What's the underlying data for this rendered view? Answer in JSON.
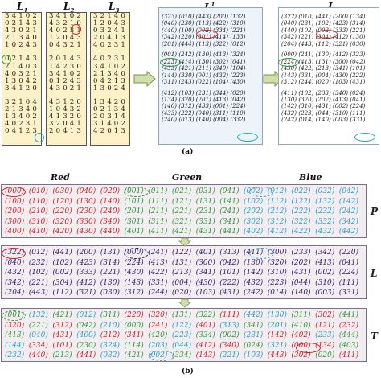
{
  "part_a": {
    "caption": "(a)",
    "latin_squares": [
      {
        "title": "L",
        "sub": "1",
        "rows": [
          "3 4 1 0 2",
          "0 2 1 4 3",
          "4 3 0 2 1",
          "2 1 3 4 0",
          "1 0 2 4 3",
          "",
          "",
          "0 2 1 4 3",
          "2 1 4 0 3",
          "4 0 3 2 1",
          "1 3 0 4 2",
          "3 4 1 2 0",
          "",
          "",
          "3 2 1 0 4",
          "2 1 3 4 0",
          "1 3 4 0 2",
          "4 0 2 3 1",
          "0 4 1 2 3"
        ]
      },
      {
        "title": "L",
        "sub": "2",
        "rows": [
          "3 4 1 0 2",
          "4 3 2 1 0",
          "4 0 2 3 1",
          "1 2 0 4 3",
          "0 4 3 2 1",
          "",
          "",
          "2 0 1 4 3",
          "1 4 2 3 0",
          "3 4 1 0 2",
          "0 1 2 4 3",
          "4 3 0 2 1",
          "",
          "",
          "4 3 1 2 0",
          "1 0 4 3 2",
          "4 1 3 2 0",
          "3 2 0 4 1",
          "2 0 4 1 3"
        ]
      },
      {
        "title": "L",
        "sub": "3",
        "rows": [
          "3 2 1 4 0",
          "1 2 0 4 3",
          "0 3 2 4 1",
          "2 0 4 1 3",
          "4 0 2 3 1",
          "",
          "",
          "4 0 2 3 1",
          "3 4 1 0 2",
          "2 1 3 4 0",
          "0 4 2 1 3",
          "1 3 0 2 4",
          "",
          "",
          "1 3 4 2 0",
          "0 2 1 3 4",
          "2 0 3 1 4",
          "3 1 4 0 2",
          "4 2 0 1 3"
        ]
      }
    ],
    "matrices": [
      {
        "title": "L",
        "sup": "1",
        "rows": [
          "(323) (010) (443) (200) (132)",
          "(040) (230) (113) (422) (310)",
          "(440) (100) (002) (334) (221)",
          "(342) (220) (301) (414) (133)",
          "(201) (444) (113) (322) (012)",
          "",
          "(001) (242) (130) (413) (324)",
          "(223) (414) (130) (302) (041)",
          "(433) (421) (211) (340) (104)",
          "(144) (330) (001) (432) (223)",
          "(311) (243) (022) (104) (430)",
          "",
          "(412) (103) (231) (344) (020)",
          "(134) (320) (201) (413) (042)",
          "(140) (312) (433) (001) (224)",
          "(433) (222) (040) (311) (110)",
          "(240) (013) (140) (004) (332)"
        ]
      },
      {
        "title": "L",
        "sup": "",
        "rows": [
          "(322) (010) (441) (200) (134)",
          "(040) (231) (102) (423) (314)",
          "(440) (102) (002) (333) (221)",
          "(342) (221) (304) (412) (130)",
          "(204) (443) (112) (321) (030)",
          "",
          "(000) (241) (130) (412) (323)",
          "(224) (413) (131) (300) (042)",
          "(430) (422) (213) (341) (101)",
          "(143) (331) (004) (430) (222)",
          "(312) (244) (020) (103) (431)",
          "",
          "(411) (102) (233) (340) (024)",
          "(130) (320) (202) (413) (041)",
          "(142) (310) (431) (002) (224)",
          "(432) (223) (044) (310) (111)",
          "(242) (014) (140) (003) (331)"
        ]
      }
    ]
  },
  "part_b": {
    "caption": "(b)",
    "column_headers": [
      "Red",
      "Green",
      "Blue"
    ],
    "colors": {
      "red": "#d61f26",
      "green": "#2f9a3a",
      "blue": "#2ba3c8",
      "dark": "#3a1e6c"
    },
    "panels": [
      {
        "label": "P",
        "rows": [
          [
            "(000)",
            "(010)",
            "(030)",
            "(040)",
            "(020)",
            "(001)",
            "(011)",
            "(021)",
            "(031)",
            "(041)",
            "(002)",
            "(012)",
            "(022)",
            "(032)",
            "(042)"
          ],
          [
            "(100)",
            "(110)",
            "(120)",
            "(130)",
            "(140)",
            "(101)",
            "(111)",
            "(121)",
            "(131)",
            "(141)",
            "(102)",
            "(112)",
            "(122)",
            "(132)",
            "(142)"
          ],
          [
            "(200)",
            "(210)",
            "(220)",
            "(230)",
            "(240)",
            "(201)",
            "(211)",
            "(221)",
            "(231)",
            "(241)",
            "(202)",
            "(212)",
            "(222)",
            "(232)",
            "(242)"
          ],
          [
            "(300)",
            "(310)",
            "(320)",
            "(330)",
            "(340)",
            "(301)",
            "(311)",
            "(321)",
            "(331)",
            "(341)",
            "(302)",
            "(312)",
            "(322)",
            "(332)",
            "(342)"
          ],
          [
            "(400)",
            "(410)",
            "(420)",
            "(430)",
            "(440)",
            "(401)",
            "(411)",
            "(421)",
            "(431)",
            "(441)",
            "(402)",
            "(412)",
            "(422)",
            "(432)",
            "(442)"
          ]
        ]
      },
      {
        "label": "L",
        "rows": [
          [
            "(322)",
            "(012)",
            "(441)",
            "(200)",
            "(131)",
            "(000)",
            "(241)",
            "(122)",
            "(401)",
            "(313)",
            "(411)",
            "(300)",
            "(233)",
            "(342)",
            "(220)"
          ],
          [
            "(040)",
            "(232)",
            "(102)",
            "(423)",
            "(314)",
            "(224)",
            "(413)",
            "(131)",
            "(300)",
            "(042)",
            "(130)",
            "(320)",
            "(202)",
            "(413)",
            "(041)"
          ],
          [
            "(432)",
            "(102)",
            "(002)",
            "(333)",
            "(221)",
            "(430)",
            "(422)",
            "(213)",
            "(341)",
            "(101)",
            "(142)",
            "(310)",
            "(431)",
            "(002)",
            "(224)"
          ],
          [
            "(342)",
            "(221)",
            "(304)",
            "(412)",
            "(130)",
            "(143)",
            "(331)",
            "(004)",
            "(430)",
            "(222)",
            "(432)",
            "(223)",
            "(044)",
            "(310)",
            "(111)"
          ],
          [
            "(204)",
            "(443)",
            "(112)",
            "(321)",
            "(030)",
            "(312)",
            "(244)",
            "(020)",
            "(103)",
            "(431)",
            "(242)",
            "(014)",
            "(140)",
            "(003)",
            "(331)"
          ]
        ]
      },
      {
        "label": "T",
        "rows": [
          [
            "(001)",
            "(132)",
            "(421)",
            "(012)",
            "(311)",
            "(220)",
            "(320)",
            "(131)",
            "(322)",
            "(111)",
            "(442)",
            "(130)",
            "(311)",
            "(302)",
            "(441)"
          ],
          [
            "(320)",
            "(221)",
            "(312)",
            "(042)",
            "(210)",
            "(000)",
            "(241)",
            "(122)",
            "(401)",
            "(313)",
            "(341)",
            "(201)",
            "(410)",
            "(121)",
            "(232)"
          ],
          [
            "(413)",
            "(040)",
            "(431)",
            "(400)",
            "(212)",
            "(341)",
            "(420)",
            "(223)",
            "(334)",
            "(002)",
            "(231)",
            "(142)",
            "(402)",
            "(233)",
            "(444)"
          ],
          [
            "(144)",
            "(334)",
            "(101)",
            "(230)",
            "(324)",
            "(114)",
            "(203)",
            "(044)",
            "(412)",
            "(340)",
            "(024)",
            "(321)",
            "(000)",
            "(134)",
            "(403)"
          ],
          [
            "(232)",
            "(440)",
            "(213)",
            "(441)",
            "(032)",
            "(421)",
            "(002)",
            "(334)",
            "(143)",
            "(221)",
            "(103)",
            "(443)",
            "(302)",
            "(020)",
            "(411)"
          ]
        ]
      }
    ],
    "row_colors": [
      [
        [
          "r",
          "r",
          "r",
          "r",
          "r",
          "g",
          "g",
          "g",
          "g",
          "g",
          "b",
          "b",
          "b",
          "b",
          "b"
        ],
        [
          "r",
          "r",
          "r",
          "r",
          "r",
          "g",
          "g",
          "g",
          "g",
          "g",
          "b",
          "b",
          "b",
          "b",
          "b"
        ],
        [
          "r",
          "r",
          "r",
          "r",
          "r",
          "g",
          "g",
          "g",
          "g",
          "g",
          "b",
          "b",
          "b",
          "b",
          "b"
        ],
        [
          "r",
          "r",
          "r",
          "r",
          "r",
          "g",
          "g",
          "g",
          "g",
          "g",
          "b",
          "b",
          "b",
          "b",
          "b"
        ],
        [
          "r",
          "r",
          "r",
          "r",
          "r",
          "g",
          "g",
          "g",
          "g",
          "g",
          "b",
          "b",
          "b",
          "b",
          "b"
        ]
      ],
      [
        [
          "d",
          "d",
          "d",
          "d",
          "d",
          "d",
          "d",
          "d",
          "d",
          "d",
          "d",
          "d",
          "d",
          "d",
          "d"
        ],
        [
          "d",
          "d",
          "d",
          "d",
          "d",
          "d",
          "d",
          "d",
          "d",
          "d",
          "d",
          "d",
          "d",
          "d",
          "d"
        ],
        [
          "d",
          "d",
          "d",
          "d",
          "d",
          "d",
          "d",
          "d",
          "d",
          "d",
          "d",
          "d",
          "d",
          "d",
          "d"
        ],
        [
          "d",
          "d",
          "d",
          "d",
          "d",
          "d",
          "d",
          "d",
          "d",
          "d",
          "d",
          "d",
          "d",
          "d",
          "d"
        ],
        [
          "d",
          "d",
          "d",
          "d",
          "d",
          "d",
          "d",
          "d",
          "d",
          "d",
          "d",
          "d",
          "d",
          "d",
          "d"
        ]
      ],
      [
        [
          "g",
          "b",
          "g",
          "b",
          "g",
          "r",
          "r",
          "g",
          "g",
          "r",
          "b",
          "b",
          "g",
          "r",
          "g"
        ],
        [
          "r",
          "g",
          "r",
          "g",
          "b",
          "g",
          "r",
          "b",
          "r",
          "b",
          "g",
          "b",
          "g",
          "r",
          "r"
        ],
        [
          "g",
          "b",
          "r",
          "b",
          "r",
          "r",
          "g",
          "b",
          "g",
          "g",
          "b",
          "r",
          "r",
          "b",
          "g"
        ],
        [
          "b",
          "r",
          "r",
          "g",
          "b",
          "g",
          "b",
          "b",
          "r",
          "r",
          "g",
          "b",
          "r",
          "r",
          "g"
        ],
        [
          "b",
          "r",
          "g",
          "r",
          "b",
          "g",
          "b",
          "g",
          "r",
          "b",
          "b",
          "r",
          "r",
          "g",
          "r"
        ]
      ]
    ]
  }
}
